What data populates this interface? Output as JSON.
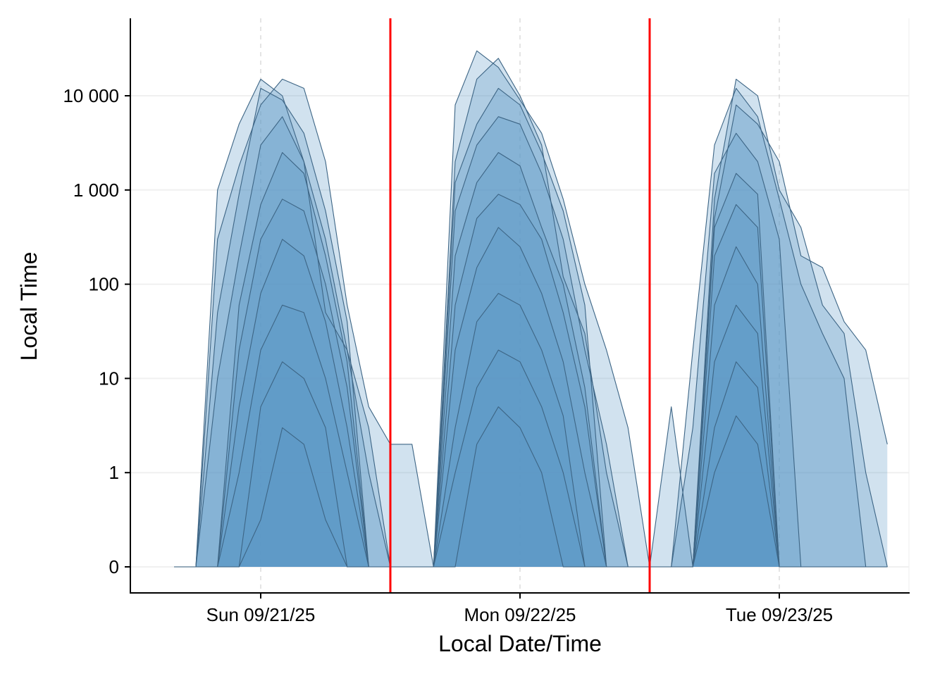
{
  "chart_data": {
    "type": "area",
    "title": "",
    "xlabel": "Local Date/Time",
    "ylabel": "Local Time",
    "x_unit": "hours since Sun 09/21/25 00:00",
    "xlim": [
      -8,
      82
    ],
    "x_ticks": [
      {
        "value": 12,
        "label": "Sun 09/21/25"
      },
      {
        "value": 36,
        "label": "Mon 09/22/25"
      },
      {
        "value": 60,
        "label": "Tue 09/23/25"
      }
    ],
    "y_scale": "pseudo-log",
    "y_ticks": [
      {
        "value": 0,
        "label": "0"
      },
      {
        "value": 1,
        "label": "1"
      },
      {
        "value": 10,
        "label": "10"
      },
      {
        "value": 100,
        "label": "100"
      },
      {
        "value": 1000,
        "label": "1 000"
      },
      {
        "value": 10000,
        "label": "10 000"
      }
    ],
    "ylim": [
      0,
      60000
    ],
    "vlines": [
      24,
      48
    ],
    "colors": {
      "fill": "#5b97c6",
      "line": "#3d6585",
      "vline": "#ff0000",
      "grid": "#f0f0f0",
      "vgrid": "#c8c8c8"
    },
    "x": [
      4,
      6,
      8,
      10,
      12,
      14,
      16,
      18,
      20,
      22,
      24,
      26,
      28,
      30,
      32,
      34,
      36,
      38,
      40,
      42,
      44,
      46,
      48,
      50,
      52,
      54,
      56,
      58,
      60,
      62,
      64,
      66,
      68,
      70
    ],
    "series": [
      {
        "name": "s1",
        "values": [
          0,
          0,
          300,
          1800,
          8000,
          15000,
          12000,
          2000,
          60,
          5,
          2,
          2,
          0,
          8000,
          30000,
          20000,
          9000,
          4000,
          800,
          100,
          20,
          3,
          0,
          0,
          0,
          500,
          8000,
          5000,
          2000,
          200,
          150,
          40,
          20,
          2
        ]
      },
      {
        "name": "s2",
        "values": [
          0,
          0,
          50,
          900,
          12000,
          9000,
          4000,
          600,
          40,
          0,
          0,
          0,
          0,
          1200,
          5000,
          12000,
          8000,
          2500,
          600,
          60,
          0,
          0,
          0,
          0,
          20,
          3000,
          12000,
          6000,
          800,
          100,
          30,
          10,
          0,
          0
        ]
      },
      {
        "name": "s3",
        "values": [
          0,
          0,
          10,
          200,
          3000,
          6000,
          2000,
          300,
          20,
          1,
          0,
          0,
          0,
          600,
          3000,
          6000,
          5000,
          1500,
          300,
          20,
          2,
          0,
          0,
          0,
          3,
          1500,
          4000,
          2000,
          300,
          0,
          0,
          0,
          0,
          0
        ]
      },
      {
        "name": "s4",
        "values": [
          0,
          0,
          0,
          60,
          700,
          2500,
          1500,
          200,
          15,
          0,
          0,
          0,
          0,
          200,
          1200,
          2500,
          1800,
          400,
          100,
          8,
          0,
          0,
          0,
          0,
          0,
          400,
          1500,
          900,
          0,
          0,
          0,
          0,
          0,
          0
        ]
      },
      {
        "name": "s5",
        "values": [
          0,
          0,
          0,
          20,
          300,
          800,
          600,
          100,
          8,
          0,
          0,
          0,
          0,
          60,
          500,
          900,
          700,
          300,
          50,
          5,
          0,
          0,
          0,
          0,
          0,
          200,
          700,
          400,
          0,
          0,
          0,
          0,
          0,
          0
        ]
      },
      {
        "name": "s6",
        "values": [
          0,
          0,
          0,
          5,
          80,
          300,
          200,
          40,
          3,
          0,
          0,
          0,
          0,
          20,
          150,
          400,
          250,
          80,
          15,
          1,
          0,
          0,
          0,
          0,
          0,
          60,
          250,
          100,
          0,
          0,
          0,
          0,
          0,
          0
        ]
      },
      {
        "name": "s7",
        "values": [
          0,
          0,
          0,
          1,
          20,
          60,
          50,
          10,
          1,
          0,
          0,
          0,
          0,
          3,
          40,
          80,
          60,
          20,
          4,
          0,
          0,
          0,
          0,
          0,
          0,
          15,
          60,
          30,
          0,
          0,
          0,
          0,
          0,
          0
        ]
      },
      {
        "name": "s8",
        "values": [
          0,
          0,
          0,
          0,
          5,
          15,
          10,
          3,
          0,
          0,
          0,
          0,
          0,
          1,
          8,
          20,
          15,
          5,
          1,
          0,
          0,
          0,
          0,
          0,
          0,
          3,
          15,
          8,
          0,
          0,
          0,
          0,
          0,
          0
        ]
      },
      {
        "name": "s9",
        "values": [
          0,
          0,
          0,
          0,
          0.5,
          3,
          2,
          0.5,
          0,
          0,
          0,
          0,
          0,
          0,
          2,
          5,
          3,
          1,
          0,
          0,
          0,
          0,
          0,
          0,
          0,
          1,
          4,
          2,
          0,
          0,
          0,
          0,
          0,
          0
        ]
      },
      {
        "name": "s10",
        "values": [
          0,
          0,
          1000,
          5000,
          15000,
          10000,
          2000,
          50,
          20,
          3,
          0,
          0,
          0,
          2000,
          15000,
          25000,
          10000,
          3000,
          120,
          30,
          1,
          0,
          0,
          5,
          0,
          800,
          15000,
          10000,
          1000,
          400,
          60,
          30,
          1,
          0
        ]
      }
    ]
  }
}
